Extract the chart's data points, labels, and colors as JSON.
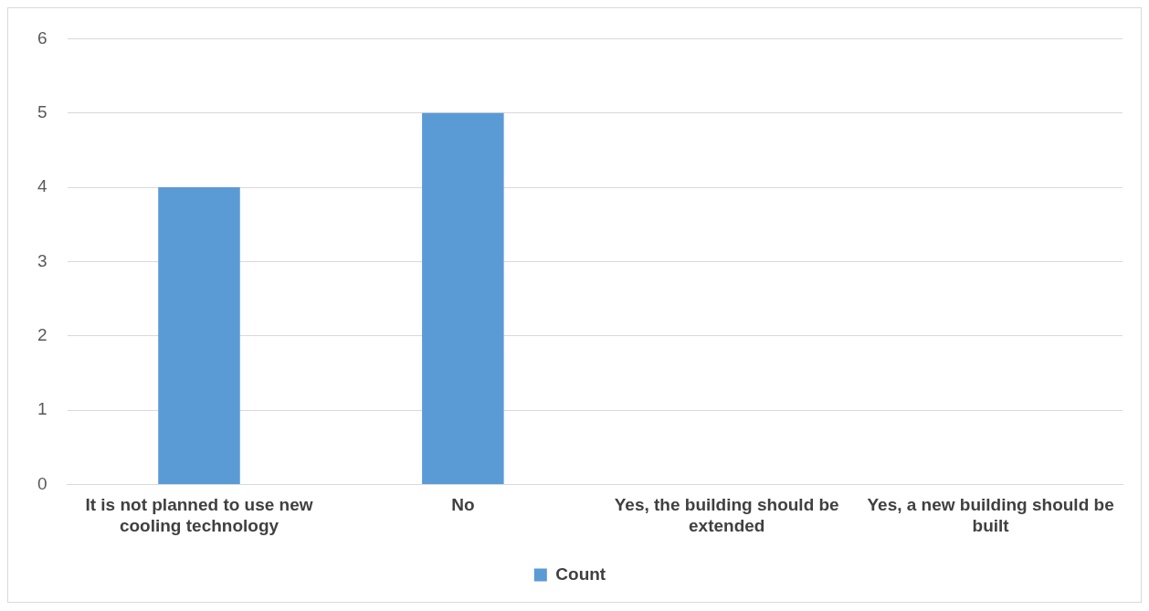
{
  "chart_data": {
    "type": "bar",
    "categories": [
      "It is not planned to use new cooling technology",
      "No",
      "Yes, the building should be extended",
      "Yes, a new building should be built"
    ],
    "series": [
      {
        "name": "Count",
        "color": "#5b9bd5",
        "values": [
          4,
          5,
          0,
          0
        ]
      }
    ],
    "ylim": [
      0,
      6
    ],
    "yticks": [
      0,
      1,
      2,
      3,
      4,
      5,
      6
    ],
    "grid": "y",
    "legend": "bottom"
  }
}
